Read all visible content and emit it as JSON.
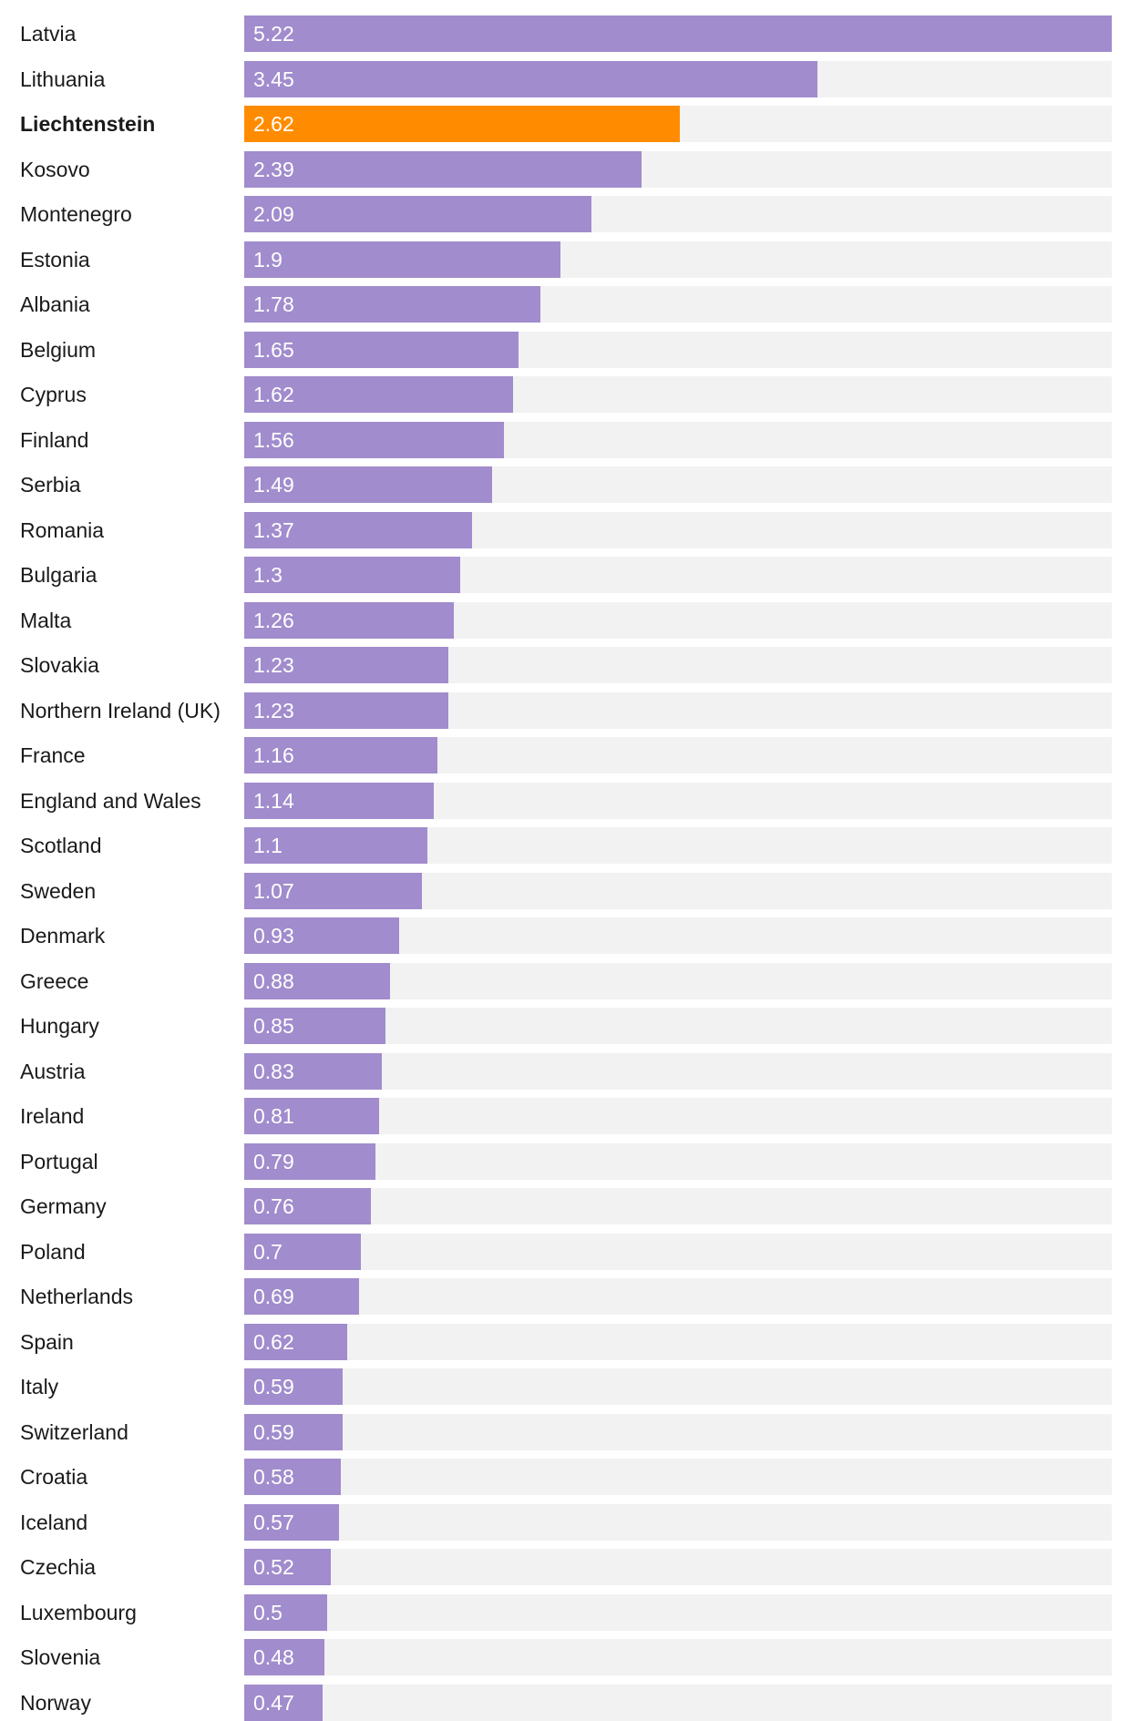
{
  "chart_data": {
    "type": "bar",
    "orientation": "horizontal",
    "categories": [
      "Latvia",
      "Lithuania",
      "Liechtenstein",
      "Kosovo",
      "Montenegro",
      "Estonia",
      "Albania",
      "Belgium",
      "Cyprus",
      "Finland",
      "Serbia",
      "Romania",
      "Bulgaria",
      "Malta",
      "Slovakia",
      "Northern Ireland (UK)",
      "France",
      "England and Wales",
      "Scotland",
      "Sweden",
      "Denmark",
      "Greece",
      "Hungary",
      "Austria",
      "Ireland",
      "Portugal",
      "Germany",
      "Poland",
      "Netherlands",
      "Spain",
      "Italy",
      "Switzerland",
      "Croatia",
      "Iceland",
      "Czechia",
      "Luxembourg",
      "Slovenia",
      "Norway"
    ],
    "values": [
      5.22,
      3.45,
      2.62,
      2.39,
      2.09,
      1.9,
      1.78,
      1.65,
      1.62,
      1.56,
      1.49,
      1.37,
      1.3,
      1.26,
      1.23,
      1.23,
      1.16,
      1.14,
      1.1,
      1.07,
      0.93,
      0.88,
      0.85,
      0.83,
      0.81,
      0.79,
      0.76,
      0.7,
      0.69,
      0.62,
      0.59,
      0.59,
      0.58,
      0.57,
      0.52,
      0.5,
      0.48,
      0.47
    ],
    "value_labels": [
      "5.22",
      "3.45",
      "2.62",
      "2.39",
      "2.09",
      "1.9",
      "1.78",
      "1.65",
      "1.62",
      "1.56",
      "1.49",
      "1.37",
      "1.3",
      "1.26",
      "1.23",
      "1.23",
      "1.16",
      "1.14",
      "1.1",
      "1.07",
      "0.93",
      "0.88",
      "0.85",
      "0.83",
      "0.81",
      "0.79",
      "0.76",
      "0.7",
      "0.69",
      "0.62",
      "0.59",
      "0.59",
      "0.58",
      "0.57",
      "0.52",
      "0.5",
      "0.48",
      "0.47"
    ],
    "highlight": "Liechtenstein",
    "xlim": [
      0,
      5.22
    ],
    "grid": false,
    "colors": {
      "bar": "#a18ccd",
      "highlight": "#ff8c00",
      "track": "#f2f2f2",
      "value_text": "#ffffff",
      "label_text": "#1a1a1a"
    }
  }
}
